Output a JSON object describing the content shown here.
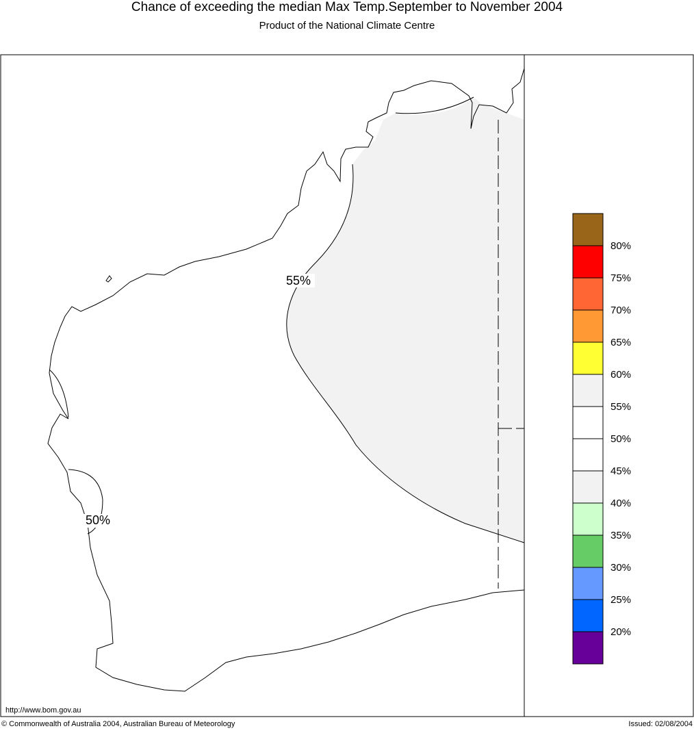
{
  "header": {
    "title": "Chance of exceeding the median Max Temp.September to November 2004",
    "subtitle": "Product of the National Climate Centre"
  },
  "map": {
    "contour_labels": [
      "55%",
      "50%"
    ]
  },
  "legend": {
    "colors": [
      "#996619",
      "#ff0000",
      "#ff6633",
      "#ff9933",
      "#ffff33",
      "#f2f2f2",
      "#ffffff",
      "#ffffff",
      "#f2f2f2",
      "#ccffcc",
      "#66cc66",
      "#6699ff",
      "#0066ff",
      "#660099"
    ],
    "labels": [
      "80%",
      "75%",
      "70%",
      "65%",
      "60%",
      "55%",
      "50%",
      "45%",
      "40%",
      "35%",
      "30%",
      "25%",
      "20%"
    ]
  },
  "footer": {
    "url": "http://www.bom.gov.au",
    "copyright": "© Commonwealth of Australia 2004, Australian Bureau of Meteorology",
    "issued": "Issued: 02/08/2004"
  }
}
